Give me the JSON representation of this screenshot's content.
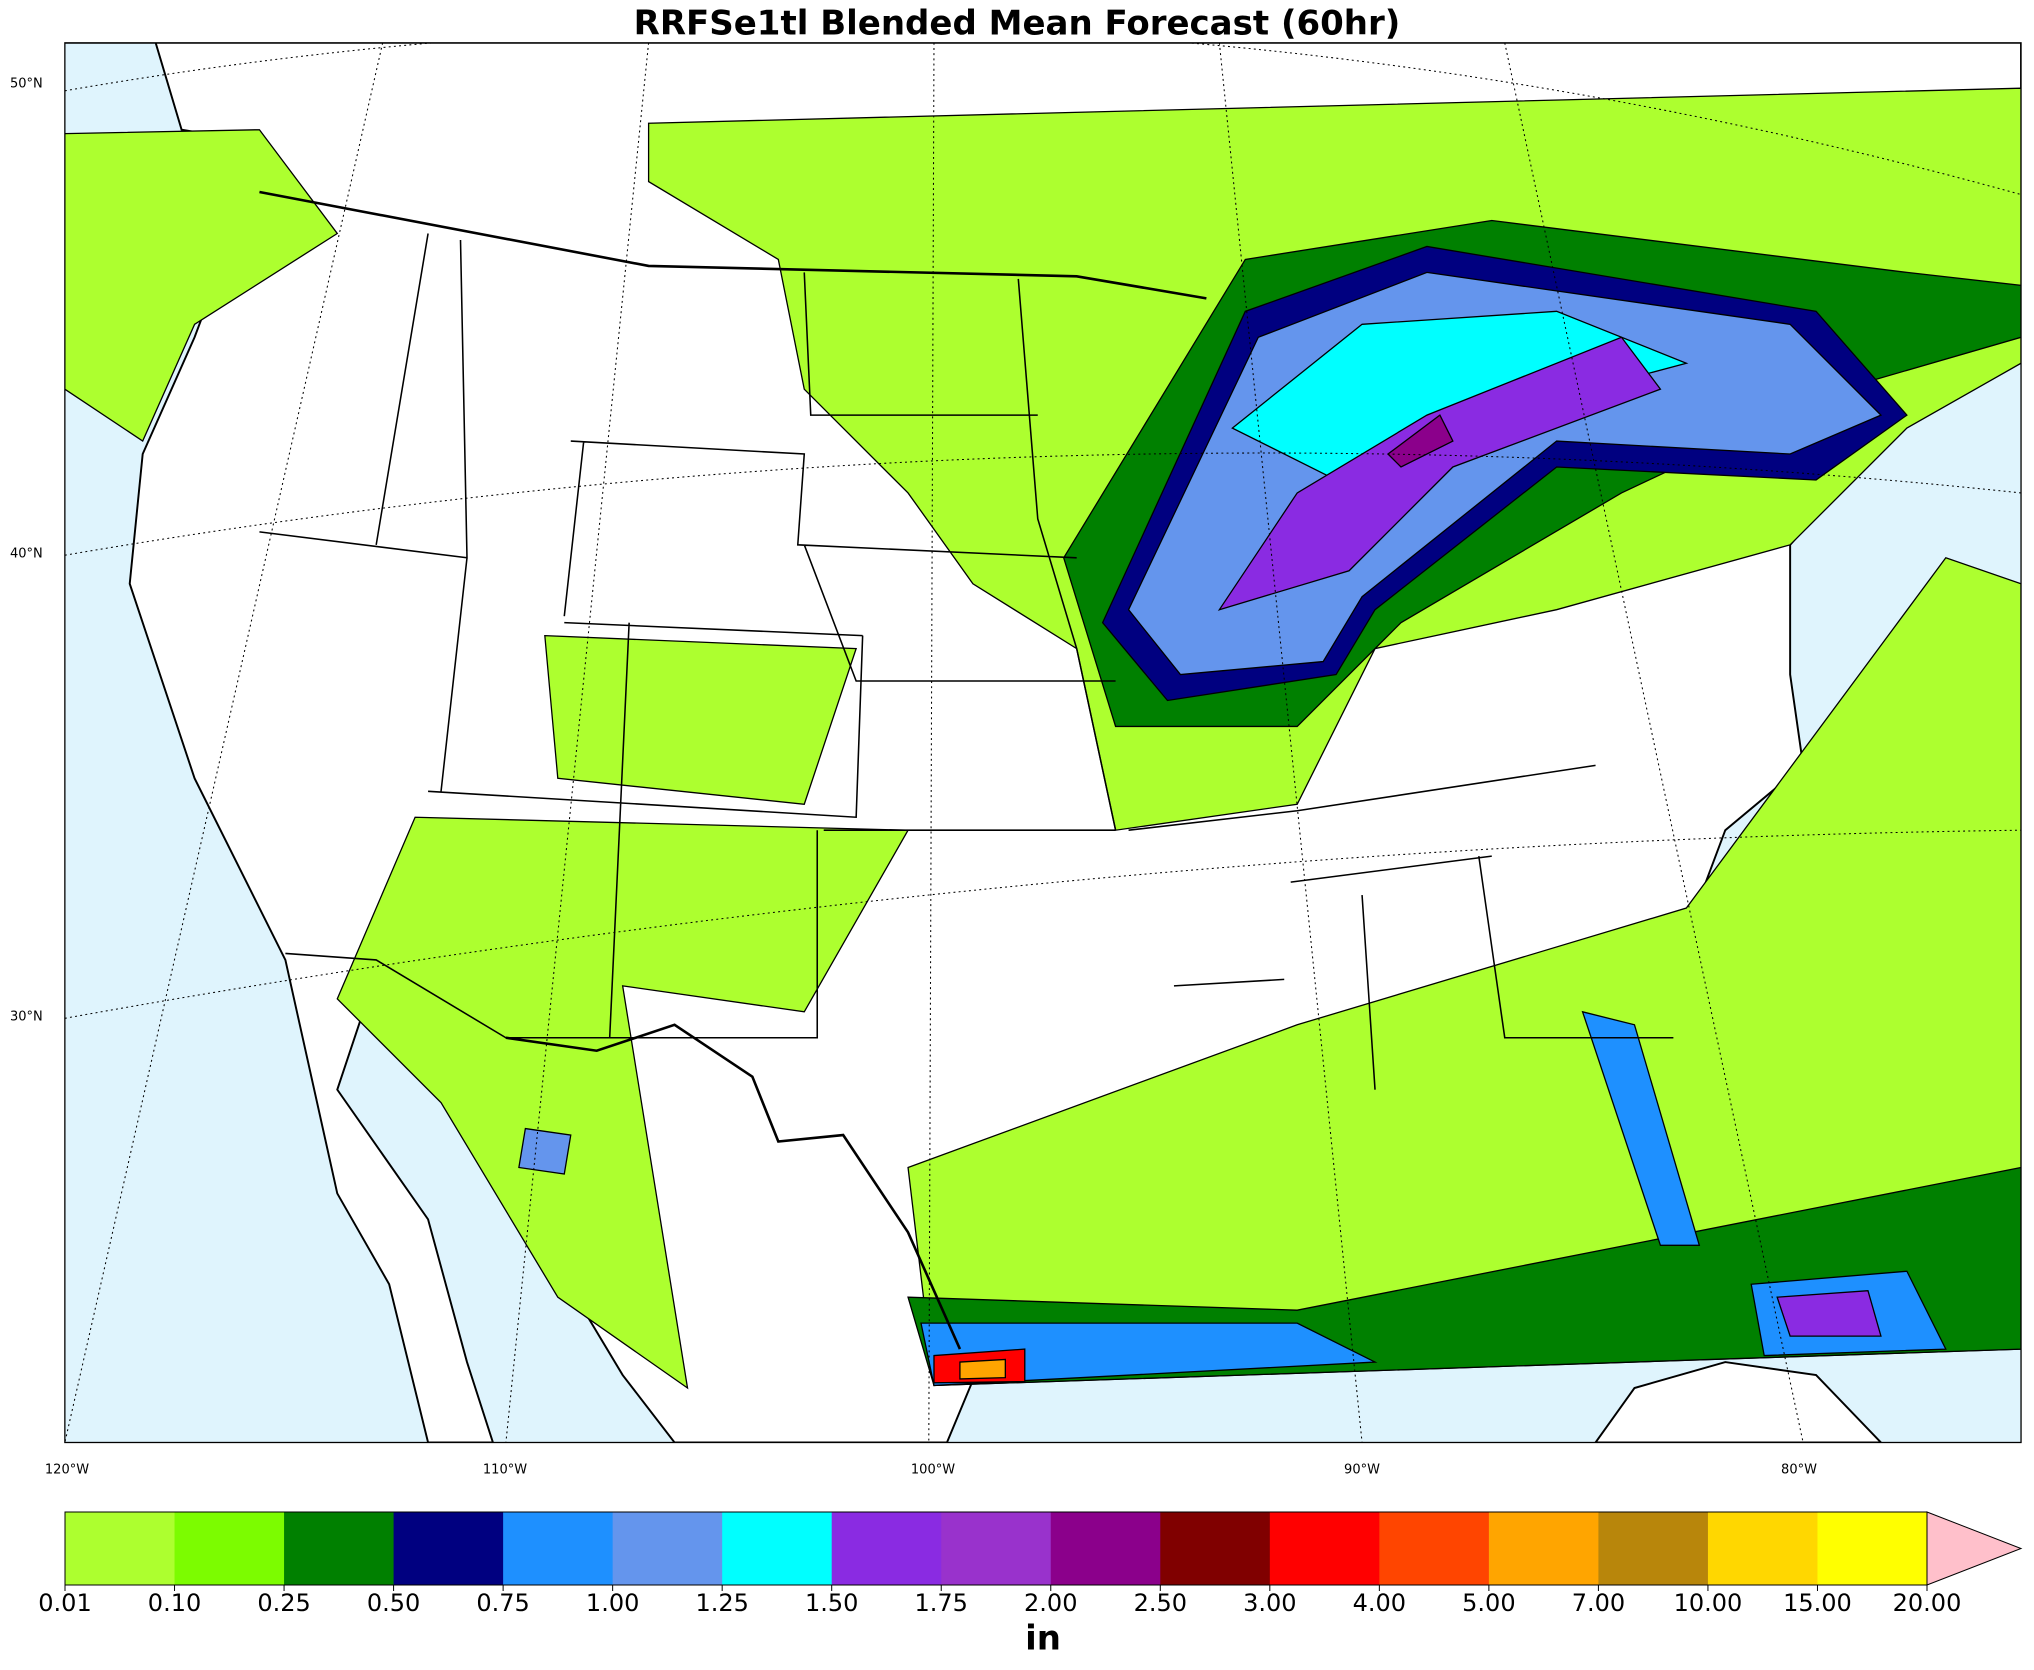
{
  "title": "RRFSe1tl Blended Mean Forecast (60hr)",
  "map": {
    "lat_labels": [
      "50°N",
      "40°N",
      "30°N"
    ],
    "lon_labels": [
      "120°W",
      "110°W",
      "100°W",
      "90°W",
      "80°W"
    ]
  },
  "colorbar": {
    "levels": [
      "0.01",
      "0.10",
      "0.25",
      "0.50",
      "0.75",
      "1.00",
      "1.25",
      "1.50",
      "1.75",
      "2.00",
      "2.50",
      "3.00",
      "4.00",
      "5.00",
      "7.00",
      "10.00",
      "15.00",
      "20.00"
    ],
    "colors": [
      "#adff2f",
      "#7cfc00",
      "#008000",
      "#000080",
      "#1e90ff",
      "#6495ed",
      "#00ffff",
      "#8a2be2",
      "#9932cc",
      "#8b008b",
      "#800000",
      "#ff0000",
      "#ff4500",
      "#ffa500",
      "#b8860b",
      "#ffd700",
      "#ffff00",
      "#ffc0cb"
    ],
    "unit": "in"
  }
}
